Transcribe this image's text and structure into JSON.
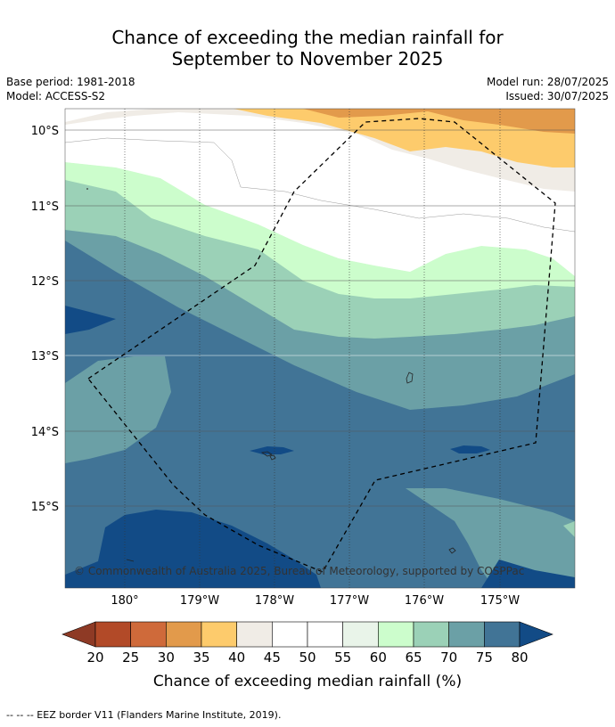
{
  "title": {
    "line1": "Chance of exceeding the median rainfall for",
    "line2": "September to November 2025"
  },
  "info_left": {
    "base_period": "Base period: 1981-2018",
    "model": "Model: ACCESS-S2"
  },
  "info_right": {
    "model_run": "Model run: 28/07/2025",
    "issued": "Issued: 30/07/2025"
  },
  "map": {
    "lat_labels": [
      "10°S",
      "11°S",
      "12°S",
      "13°S",
      "14°S",
      "15°S"
    ],
    "lon_labels": [
      "180°",
      "179°W",
      "178°W",
      "177°W",
      "176°W",
      "175°W"
    ],
    "copyright": "© Commonwealth of Australia 2025, Bureau of Meteorology, supported by COSPPac",
    "eez_boundary": "dashed"
  },
  "colorbar": {
    "ticks": [
      "20",
      "25",
      "30",
      "35",
      "40",
      "45",
      "50",
      "55",
      "60",
      "65",
      "70",
      "75",
      "80"
    ],
    "label": "Chance of exceeding median rainfall (%)",
    "colors": [
      "#8e3a25",
      "#b24a28",
      "#cf6a3a",
      "#e29a4b",
      "#fdcb6c",
      "#f0ece6",
      "#ffffff",
      "#ffffff",
      "#e9f4e9",
      "#ccfdcc",
      "#9bd1b7",
      "#6ba0a6",
      "#417496",
      "#124b86"
    ]
  },
  "footnote": "--  --  -- EEZ border V11 (Flanders Marine Institute, 2019)."
}
